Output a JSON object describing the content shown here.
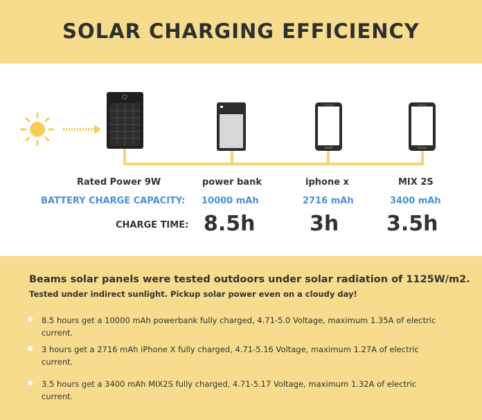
{
  "header": {
    "title": "SOLAR CHARGING EFFICIENCY"
  },
  "icons": {
    "sun": "sun-icon",
    "arrow": "dotted-arrow-icon",
    "panel": "solar-panel-icon",
    "power_bank": "power-bank-icon",
    "phone": "smartphone-icon"
  },
  "colors": {
    "banner": "#f6dc8c",
    "accent_blue": "#4a90d9",
    "cable_yellow": "#f3d66e",
    "sun_yellow": "#f5cf55",
    "text_dark": "#333333"
  },
  "devices": {
    "panel": {
      "name": "Rated Power 9W"
    },
    "power_bank": {
      "name": "power bank",
      "capacity": "10000 mAh",
      "time": "8.5h"
    },
    "iphone": {
      "name": "iphone x",
      "capacity": "2716 mAh",
      "time": "3h"
    },
    "mix": {
      "name": "MIX 2S",
      "capacity": "3400 mAh",
      "time": "3.5h"
    }
  },
  "labels": {
    "capacity": "BATTERY CHARGE CAPACITY:",
    "charge_time": "CHARGE TIME:"
  },
  "footer": {
    "intro": "Beams solar panels were tested outdoors under solar radiation of 1125W/m2.",
    "sub": "Tested under indirect sunlight. Pickup solar power even on a cloudy day!",
    "bullets": [
      "8.5 hours get a 10000 mAh powerbank fully charged, 4.71-5.0 Voltage, maximum 1.35A of electric current.",
      "3 hours get a 2716 mAh iPhone X fully charged, 4.71-5.16 Voltage, maximum 1.27A of electric current.",
      "3.5 hours get a 3400 mAh MIX2S fully charged, 4.71-5.17 Voltage, maximum 1.32A of electric current."
    ]
  }
}
